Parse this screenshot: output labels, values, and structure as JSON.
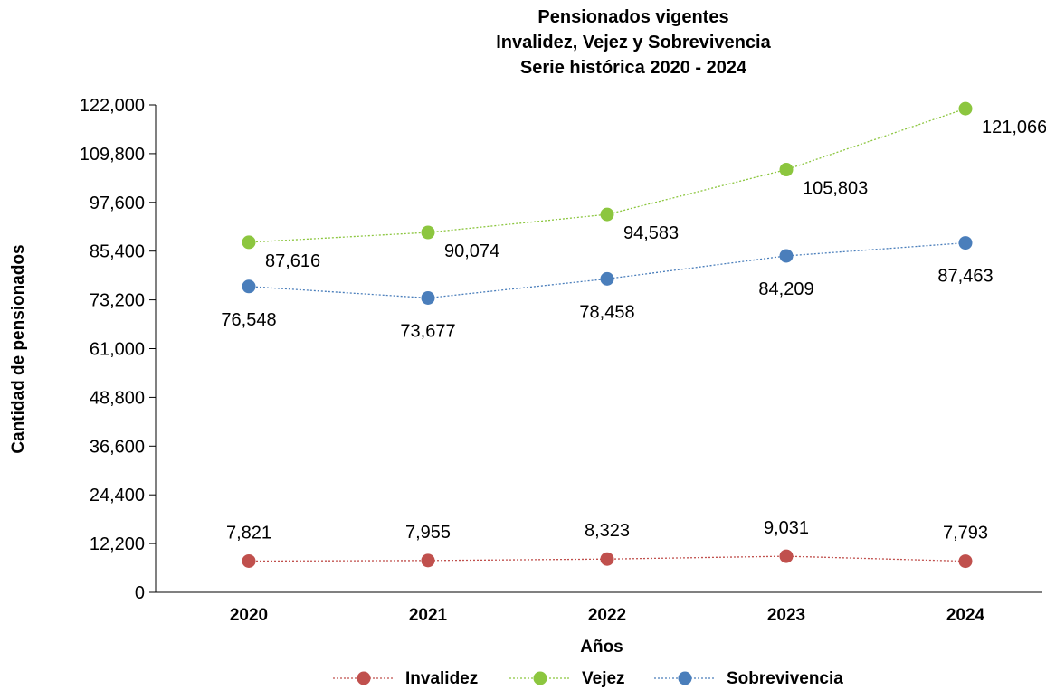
{
  "chart_data": {
    "type": "line",
    "title": [
      "Pensionados vigentes",
      "Invalidez, Vejez y Sobrevivencia",
      "Serie histórica 2020 - 2024"
    ],
    "xlabel": "Años",
    "ylabel": "Cantidad de pensionados",
    "categories": [
      "2020",
      "2021",
      "2022",
      "2023",
      "2024"
    ],
    "ylim": [
      0,
      122000
    ],
    "yticks": [
      0,
      12200,
      24400,
      36600,
      48800,
      61000,
      73200,
      85400,
      97600,
      109800,
      122000
    ],
    "ytick_labels": [
      "0",
      "12,200",
      "24,400",
      "36,600",
      "48,800",
      "61,000",
      "73,200",
      "85,400",
      "97,600",
      "109,800",
      "122,000"
    ],
    "grid": false,
    "legend_position": "bottom",
    "series": [
      {
        "name": "Invalidez",
        "color": "#c0504d",
        "values": [
          7821,
          7955,
          8323,
          9031,
          7793
        ],
        "labels": [
          "7,821",
          "7,955",
          "8,323",
          "9,031",
          "7,793"
        ],
        "label_position": "above"
      },
      {
        "name": "Vejez",
        "color": "#8cc63f",
        "values": [
          87616,
          90074,
          94583,
          105803,
          121066
        ],
        "labels": [
          "87,616",
          "90,074",
          "94,583",
          "105,803",
          "121,066"
        ],
        "label_position": "below-right"
      },
      {
        "name": "Sobrevivencia",
        "color": "#4a7ebb",
        "values": [
          76548,
          73677,
          78458,
          84209,
          87463
        ],
        "labels": [
          "76,548",
          "73,677",
          "78,458",
          "84,209",
          "87,463"
        ],
        "label_position": "below"
      }
    ]
  }
}
